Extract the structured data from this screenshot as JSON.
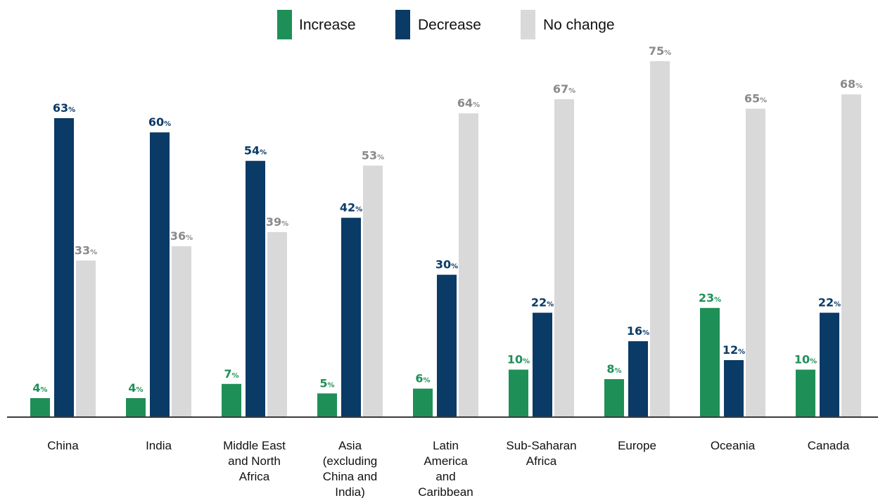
{
  "chart_data": {
    "type": "bar",
    "categories": [
      [
        "China"
      ],
      [
        "India"
      ],
      [
        "Middle East",
        "and North",
        "Africa"
      ],
      [
        "Asia",
        "(excluding",
        "China and",
        "India)"
      ],
      [
        "Latin",
        "America",
        "and",
        "Caribbean"
      ],
      [
        "Sub-Saharan",
        "Africa"
      ],
      [
        "Europe"
      ],
      [
        "Oceania"
      ],
      [
        "Canada"
      ]
    ],
    "series": [
      {
        "name": "Increase",
        "color": "#1f8f58",
        "label_color": "#1f8f58",
        "values": [
          4,
          4,
          7,
          5,
          6,
          10,
          8,
          23,
          10
        ]
      },
      {
        "name": "Decrease",
        "color": "#0a3a66",
        "label_color": "#0a3a66",
        "values": [
          63,
          60,
          54,
          42,
          30,
          22,
          16,
          12,
          22
        ]
      },
      {
        "name": "No change",
        "color": "#d9d9d9",
        "label_color": "#8a8a8a",
        "values": [
          33,
          36,
          39,
          53,
          64,
          67,
          75,
          65,
          68
        ]
      }
    ],
    "value_suffix": "%",
    "ylim": [
      0,
      75
    ],
    "legend_position": "top-center",
    "grid": false,
    "title": "",
    "xlabel": "",
    "ylabel": ""
  }
}
